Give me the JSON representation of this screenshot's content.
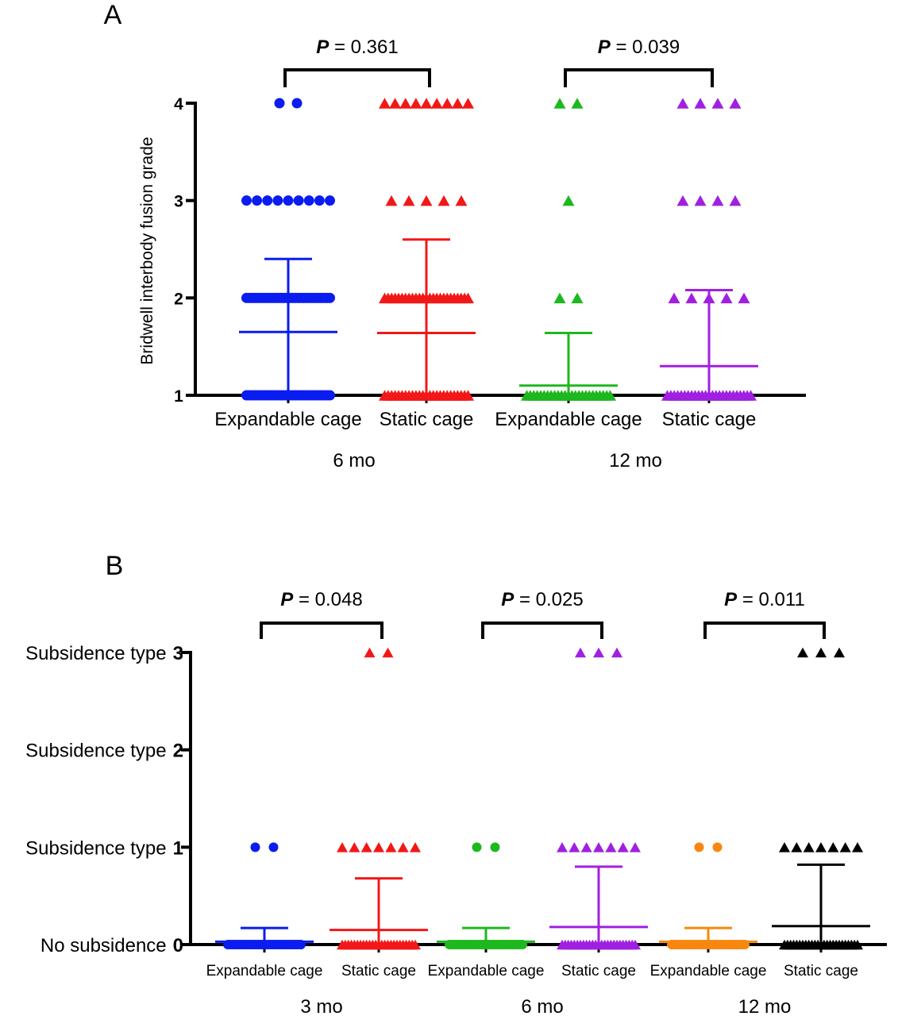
{
  "chart_data": [
    {
      "type": "scatter",
      "panel_label": "A",
      "ylabel": "Bridwell interbody fusion grade",
      "ylim": [
        1,
        4
      ],
      "y_ticks": [
        {
          "value": 1,
          "label": "1"
        },
        {
          "value": 2,
          "label": "2"
        },
        {
          "value": 3,
          "label": "3"
        },
        {
          "value": 4,
          "label": "4"
        }
      ],
      "categories": [
        "Expandable cage",
        "Static cage",
        "Expandable cage",
        "Static cage"
      ],
      "time_points": [
        {
          "label": "6 mo",
          "groups": [
            0,
            1
          ]
        },
        {
          "label": "12 mo",
          "groups": [
            2,
            3
          ]
        }
      ],
      "comparisons": [
        {
          "p_label": "P",
          "p_text": " = 0.361",
          "groups": [
            0,
            1
          ]
        },
        {
          "p_label": "P",
          "p_text": " = 0.039",
          "groups": [
            2,
            3
          ]
        }
      ],
      "series": [
        {
          "category_index": 0,
          "marker": "circle",
          "color": "#0a1cf0",
          "mean": 1.65,
          "sd_upper": 2.4,
          "points": [
            {
              "y": 4,
              "count": 2
            },
            {
              "y": 3,
              "count": 9
            },
            {
              "y": 2,
              "count": 30
            },
            {
              "y": 1,
              "count": 30
            }
          ]
        },
        {
          "category_index": 1,
          "marker": "triangle",
          "color": "#f21818",
          "mean": 1.64,
          "sd_upper": 2.6,
          "points": [
            {
              "y": 4,
              "count": 9
            },
            {
              "y": 3,
              "count": 5
            },
            {
              "y": 2,
              "count": 25
            },
            {
              "y": 1,
              "count": 25
            }
          ]
        },
        {
          "category_index": 2,
          "marker": "triangle",
          "color": "#1db81d",
          "mean": 1.1,
          "sd_upper": 1.64,
          "points": [
            {
              "y": 4,
              "count": 2
            },
            {
              "y": 3,
              "count": 1
            },
            {
              "y": 2,
              "count": 2
            },
            {
              "y": 1,
              "count": 25
            }
          ]
        },
        {
          "category_index": 3,
          "marker": "triangle",
          "color": "#a020e0",
          "mean": 1.3,
          "sd_upper": 2.08,
          "points": [
            {
              "y": 4,
              "count": 4
            },
            {
              "y": 3,
              "count": 4
            },
            {
              "y": 2,
              "count": 5
            },
            {
              "y": 1,
              "count": 25
            }
          ]
        }
      ]
    },
    {
      "type": "scatter",
      "panel_label": "B",
      "ylim": [
        0,
        3
      ],
      "y_ticks": [
        {
          "value": 0,
          "text": "No subsidence",
          "num": "0"
        },
        {
          "value": 1,
          "text": "Subsidence type",
          "num": "1"
        },
        {
          "value": 2,
          "text": "Subsidence type",
          "num": "2"
        },
        {
          "value": 3,
          "text": "Subsidence type",
          "num": "3"
        }
      ],
      "categories": [
        "Expandable cage",
        "Static cage",
        "Expandable cage",
        "Static cage",
        "Expandable cage",
        "Static cage"
      ],
      "time_points": [
        {
          "label": "3 mo",
          "groups": [
            0,
            1
          ]
        },
        {
          "label": "6 mo",
          "groups": [
            2,
            3
          ]
        },
        {
          "label": "12 mo",
          "groups": [
            4,
            5
          ]
        }
      ],
      "comparisons": [
        {
          "p_label": "P",
          "p_text": " = 0.048",
          "groups": [
            0,
            1
          ]
        },
        {
          "p_label": "P",
          "p_text": " = 0.025",
          "groups": [
            2,
            3
          ]
        },
        {
          "p_label": "P",
          "p_text": " = 0.011",
          "groups": [
            4,
            5
          ]
        }
      ],
      "series": [
        {
          "category_index": 0,
          "marker": "circle",
          "color": "#0a1cf0",
          "mean": 0.03,
          "sd_upper": 0.17,
          "points": [
            {
              "y": 1,
              "count": 2
            },
            {
              "y": 0,
              "count": 30
            }
          ]
        },
        {
          "category_index": 1,
          "marker": "triangle",
          "color": "#f21818",
          "mean": 0.15,
          "sd_upper": 0.68,
          "points": [
            {
              "y": 3,
              "count": 2
            },
            {
              "y": 1,
              "count": 7
            },
            {
              "y": 0,
              "count": 25
            }
          ]
        },
        {
          "category_index": 2,
          "marker": "circle",
          "color": "#1db81d",
          "mean": 0.03,
          "sd_upper": 0.17,
          "points": [
            {
              "y": 1,
              "count": 2
            },
            {
              "y": 0,
              "count": 30
            }
          ]
        },
        {
          "category_index": 3,
          "marker": "triangle",
          "color": "#a020e0",
          "mean": 0.18,
          "sd_upper": 0.8,
          "points": [
            {
              "y": 3,
              "count": 3
            },
            {
              "y": 1,
              "count": 7
            },
            {
              "y": 0,
              "count": 25
            }
          ]
        },
        {
          "category_index": 4,
          "marker": "circle",
          "color": "#f7870e",
          "mean": 0.03,
          "sd_upper": 0.17,
          "points": [
            {
              "y": 1,
              "count": 2
            },
            {
              "y": 0,
              "count": 30
            }
          ]
        },
        {
          "category_index": 5,
          "marker": "triangle",
          "color": "#000000",
          "mean": 0.19,
          "sd_upper": 0.82,
          "points": [
            {
              "y": 3,
              "count": 3
            },
            {
              "y": 1,
              "count": 7
            },
            {
              "y": 0,
              "count": 25
            }
          ]
        }
      ]
    }
  ]
}
